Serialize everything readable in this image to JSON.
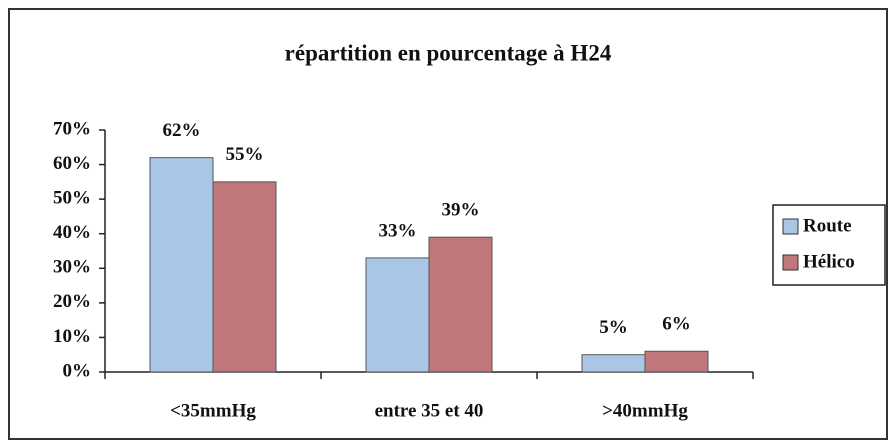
{
  "chart_data": {
    "type": "bar",
    "title": "répartition en pourcentage à H24",
    "categories": [
      "<35mmHg",
      "entre 35 et 40",
      ">40mmHg"
    ],
    "series": [
      {
        "name": "Route",
        "color": "#a9c6e6",
        "values": [
          62,
          33,
          5
        ],
        "value_labels": [
          "62%",
          "33%",
          "5%"
        ]
      },
      {
        "name": "Hélico",
        "color": "#bf777b",
        "values": [
          55,
          39,
          6
        ],
        "value_labels": [
          "55%",
          "39%",
          "6%"
        ]
      }
    ],
    "ylim": [
      0,
      70
    ],
    "yticks": [
      {
        "value": 0,
        "label": "0%"
      },
      {
        "value": 10,
        "label": "10%"
      },
      {
        "value": 20,
        "label": "20%"
      },
      {
        "value": 30,
        "label": "30%"
      },
      {
        "value": 40,
        "label": "40%"
      },
      {
        "value": 50,
        "label": "50%"
      },
      {
        "value": 60,
        "label": "60%"
      },
      {
        "value": 70,
        "label": "70%"
      }
    ],
    "legend": "right"
  }
}
